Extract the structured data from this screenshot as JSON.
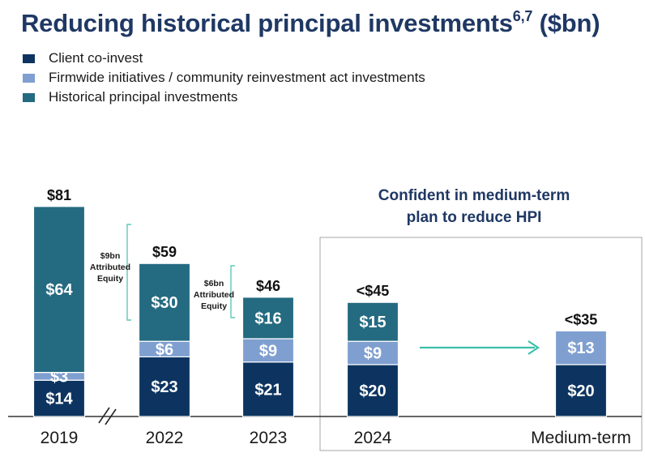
{
  "title": {
    "text": "Reducing historical principal investments",
    "superscript": "6,7",
    "unit": "($bn)"
  },
  "legend": [
    {
      "label": "Client co-invest",
      "color": "#0d3460"
    },
    {
      "label": "Firmwide initiatives / community reinvestment act investments",
      "color": "#7f9fd0"
    },
    {
      "label": "Historical principal investments",
      "color": "#246a80"
    }
  ],
  "callout": {
    "line1": "Confident in medium-term",
    "line2": "plan to reduce HPI"
  },
  "equity_annotations": [
    {
      "lines": [
        "$9bn",
        "Attributed",
        "Equity"
      ],
      "from": "2019",
      "to": "2022"
    },
    {
      "lines": [
        "$6bn",
        "Attributed",
        "Equity"
      ],
      "from": "2022",
      "to": "2023"
    }
  ],
  "chart_data": {
    "type": "bar",
    "stacked": true,
    "categories": [
      "2019",
      "2022",
      "2023",
      "2024",
      "Medium-term"
    ],
    "series": [
      {
        "name": "Client co-invest",
        "values": [
          14,
          23,
          21,
          20,
          20
        ],
        "labels": [
          "$14",
          "$23",
          "$21",
          "$20",
          "$20"
        ],
        "color": "#0d3460"
      },
      {
        "name": "Firmwide initiatives / community reinvestment act investments",
        "values": [
          3,
          6,
          9,
          9,
          13
        ],
        "labels": [
          "$3",
          "$6",
          "$9",
          "$9",
          "$13"
        ],
        "color": "#7f9fd0"
      },
      {
        "name": "Historical principal investments",
        "values": [
          64,
          30,
          16,
          15,
          0
        ],
        "labels": [
          "$64",
          "$30",
          "$16",
          "$15",
          ""
        ],
        "color": "#246a80"
      }
    ],
    "totals": [
      "$81",
      "$59",
      "$46",
      "<$45",
      "<$35"
    ],
    "axis_break_after": "2019",
    "highlighted_categories": [
      "2024",
      "Medium-term"
    ]
  }
}
